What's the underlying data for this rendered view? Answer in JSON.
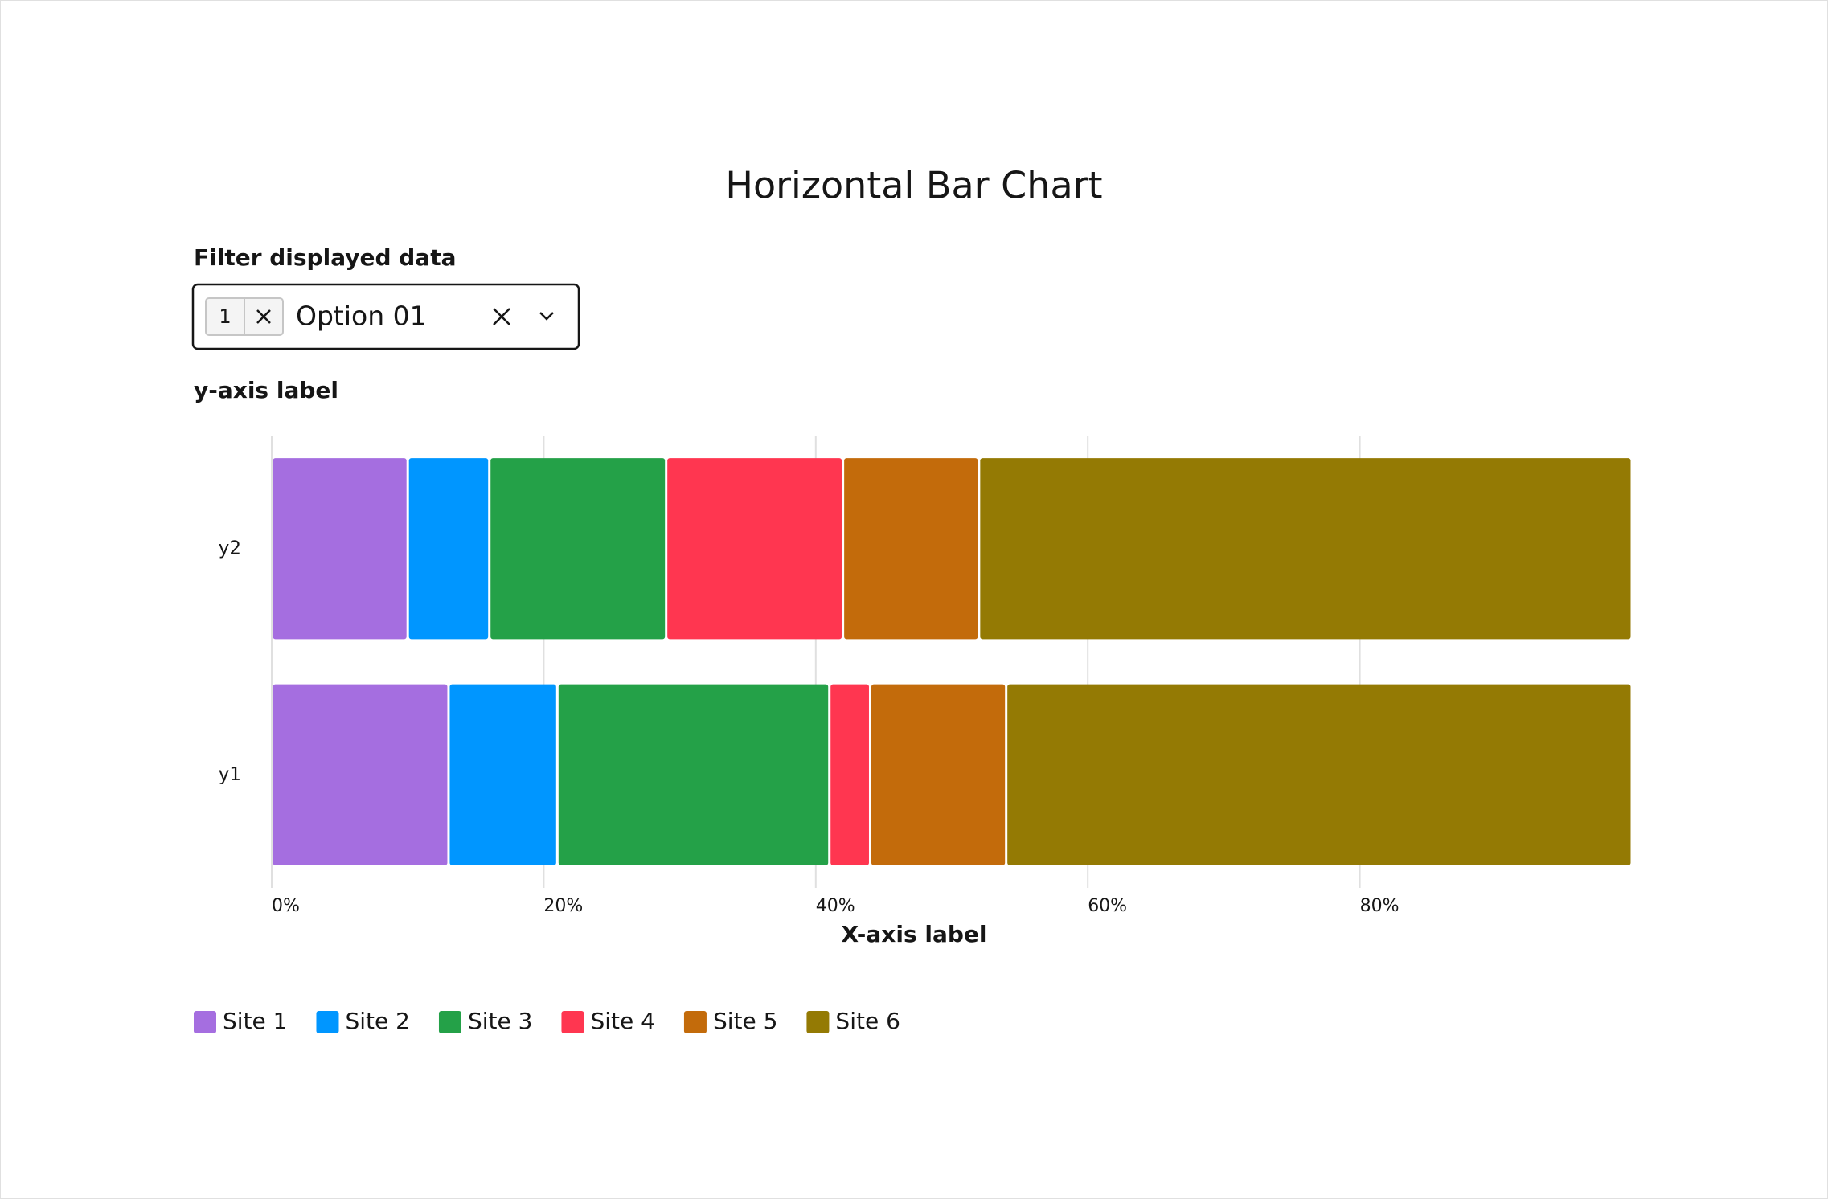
{
  "filter": {
    "label": "Filter displayed data",
    "selected_count": "1",
    "value": "Option 01"
  },
  "chart_data": {
    "type": "bar",
    "orientation": "horizontal",
    "stacked": true,
    "title": "Horizontal Bar Chart",
    "y_label": "y-axis label",
    "x_label": "X-axis label",
    "categories": [
      "y1",
      "y2"
    ],
    "series": [
      {
        "name": "Site 1",
        "color": "#a56ee0",
        "values": [
          13,
          10
        ]
      },
      {
        "name": "Site 2",
        "color": "#0096ff",
        "values": [
          8,
          6
        ]
      },
      {
        "name": "Site 3",
        "color": "#24a148",
        "values": [
          20,
          13
        ]
      },
      {
        "name": "Site 4",
        "color": "#ff3650",
        "values": [
          3,
          13
        ]
      },
      {
        "name": "Site 5",
        "color": "#c36b0b",
        "values": [
          10,
          10
        ]
      },
      {
        "name": "Site 6",
        "color": "#947a04",
        "values": [
          46,
          48
        ]
      }
    ],
    "xlim": [
      0,
      100
    ],
    "xticks": [
      {
        "value": 0,
        "label": "0%"
      },
      {
        "value": 20,
        "label": "20%"
      },
      {
        "value": 40,
        "label": "40%"
      },
      {
        "value": 60,
        "label": "60%"
      },
      {
        "value": 80,
        "label": "80%"
      }
    ],
    "grid": true,
    "legend": "bottom-left"
  }
}
